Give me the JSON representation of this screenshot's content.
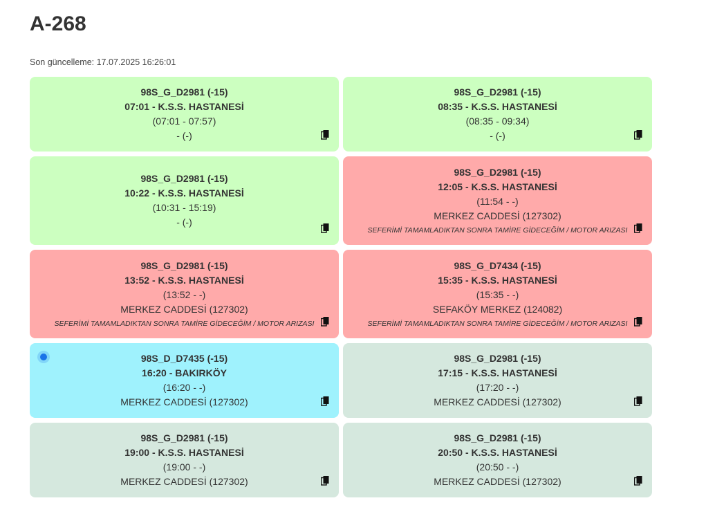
{
  "page": {
    "title": "A-268",
    "last_updated_label": "Son güncelleme:",
    "last_updated_value": "17.07.2025 16:26:01"
  },
  "colors": {
    "completed": "#ccffc0",
    "fault": "#ffaaaa",
    "active": "#9ff2fd",
    "upcoming": "#d5e8de",
    "live_dot": "#1a73e8"
  },
  "trips": [
    {
      "status": "completed",
      "route": "98S_G_D2981 (-15)",
      "departure": "07:01 - K.S.S. HASTANESİ",
      "actual": "(07:01 - 07:57)",
      "stop": "- (-)",
      "note": "",
      "copy_icon": "copy-icon"
    },
    {
      "status": "completed",
      "route": "98S_G_D2981 (-15)",
      "departure": "08:35 - K.S.S. HASTANESİ",
      "actual": "(08:35 - 09:34)",
      "stop": "- (-)",
      "note": "",
      "copy_icon": "copy-icon"
    },
    {
      "status": "completed",
      "route": "98S_G_D2981 (-15)",
      "departure": "10:22 - K.S.S. HASTANESİ",
      "actual": "(10:31 - 15:19)",
      "stop": "- (-)",
      "note": "",
      "copy_icon": "copy-icon"
    },
    {
      "status": "fault",
      "route": "98S_G_D2981 (-15)",
      "departure": "12:05 - K.S.S. HASTANESİ",
      "actual": "(11:54 - -)",
      "stop": "MERKEZ CADDESİ (127302)",
      "note": "SEFERİMİ TAMAMLADIKTAN SONRA TAMİRE GİDECEĞİM / MOTOR ARIZASI",
      "copy_icon": "copy-icon"
    },
    {
      "status": "fault",
      "route": "98S_G_D2981 (-15)",
      "departure": "13:52 - K.S.S. HASTANESİ",
      "actual": "(13:52 - -)",
      "stop": "MERKEZ CADDESİ (127302)",
      "note": "SEFERİMİ TAMAMLADIKTAN SONRA TAMİRE GİDECEĞİM / MOTOR ARIZASI",
      "copy_icon": "copy-icon"
    },
    {
      "status": "fault",
      "route": "98S_G_D7434 (-15)",
      "departure": "15:35 - K.S.S. HASTANESİ",
      "actual": "(15:35 - -)",
      "stop": "SEFAKÖY MERKEZ (124082)",
      "note": "SEFERİMİ TAMAMLADIKTAN SONRA TAMİRE GİDECEĞİM / MOTOR ARIZASI",
      "copy_icon": "copy-icon"
    },
    {
      "status": "active",
      "route": "98S_D_D7435 (-15)",
      "departure": "16:20 - BAKIRKÖY",
      "actual": "(16:20 - -)",
      "stop": "MERKEZ CADDESİ (127302)",
      "note": "",
      "copy_icon": "copy-icon",
      "live_indicator": "live-dot-icon"
    },
    {
      "status": "upcoming",
      "route": "98S_G_D2981 (-15)",
      "departure": "17:15 - K.S.S. HASTANESİ",
      "actual": "(17:20 - -)",
      "stop": "MERKEZ CADDESİ (127302)",
      "note": "",
      "copy_icon": "copy-icon"
    },
    {
      "status": "upcoming",
      "route": "98S_G_D2981 (-15)",
      "departure": "19:00 - K.S.S. HASTANESİ",
      "actual": "(19:00 - -)",
      "stop": "MERKEZ CADDESİ (127302)",
      "note": "",
      "copy_icon": "copy-icon"
    },
    {
      "status": "upcoming",
      "route": "98S_G_D2981 (-15)",
      "departure": "20:50 - K.S.S. HASTANESİ",
      "actual": "(20:50 - -)",
      "stop": "MERKEZ CADDESİ (127302)",
      "note": "",
      "copy_icon": "copy-icon"
    }
  ]
}
